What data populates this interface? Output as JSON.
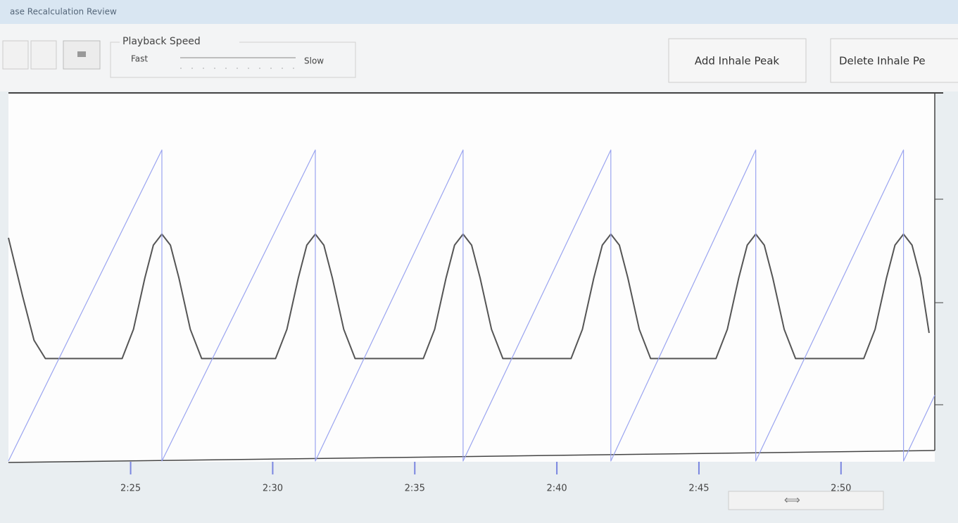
{
  "window": {
    "title": "ase Recalculation Review"
  },
  "toolbar": {
    "playback_label": "Playback Speed",
    "fast": "Fast",
    "slow": "Slow",
    "buttons": [
      "Add Inhale Peak",
      "Delete Inhale Pe"
    ]
  },
  "chart_data": {
    "type": "line",
    "xlim": [
      140.7,
      173.3
    ],
    "ylim": [
      0,
      100
    ],
    "xticks": [
      {
        "value": 145,
        "label": "2:25"
      },
      {
        "value": 150,
        "label": "2:30"
      },
      {
        "value": 155,
        "label": "2:35"
      },
      {
        "value": 160,
        "label": "2:40"
      },
      {
        "value": 165,
        "label": "2:45"
      },
      {
        "value": 170,
        "label": "2:50"
      }
    ],
    "series": [
      {
        "color": "#555555",
        "x": [
          140.7,
          141.2,
          141.6,
          142.0,
          144.7,
          145.1,
          145.5,
          145.8,
          146.1,
          146.4,
          146.7,
          147.1,
          147.5,
          150.1,
          150.5,
          150.9,
          151.2,
          151.5,
          151.8,
          152.1,
          152.5,
          152.9,
          155.3,
          155.7,
          156.1,
          156.4,
          156.7,
          157.0,
          157.3,
          157.7,
          158.1,
          160.5,
          160.9,
          161.3,
          161.6,
          161.9,
          162.2,
          162.5,
          162.9,
          163.3,
          165.6,
          166.0,
          166.4,
          166.7,
          167.0,
          167.3,
          167.6,
          168.0,
          168.4,
          170.8,
          171.2,
          171.6,
          171.9,
          172.2,
          172.5,
          172.8,
          173.1
        ],
        "values": [
          61,
          45,
          33,
          28,
          28,
          36,
          50,
          59,
          62,
          59,
          50,
          36,
          28,
          28,
          36,
          50,
          59,
          62,
          59,
          50,
          36,
          28,
          28,
          36,
          50,
          59,
          62,
          59,
          50,
          36,
          28,
          28,
          36,
          50,
          59,
          62,
          59,
          50,
          36,
          28,
          28,
          36,
          50,
          59,
          62,
          59,
          50,
          36,
          28,
          28,
          36,
          50,
          59,
          62,
          59,
          50,
          35
        ]
      },
      {
        "color": "#9aa4f0",
        "x": [
          140.7,
          146.1,
          146.1,
          151.5,
          151.5,
          156.7,
          156.7,
          161.9,
          161.9,
          167.0,
          167.0,
          172.2,
          172.2,
          173.3
        ],
        "values": [
          0,
          85,
          0,
          85,
          0,
          85,
          0,
          85,
          0,
          85,
          0,
          85,
          0,
          18
        ]
      }
    ]
  }
}
